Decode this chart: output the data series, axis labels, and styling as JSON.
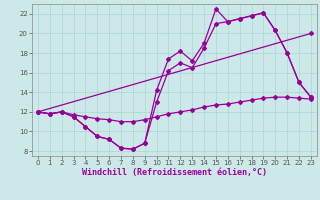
{
  "xlabel": "Windchill (Refroidissement éolien,°C)",
  "xlim": [
    -0.5,
    23.5
  ],
  "ylim": [
    7.5,
    23.0
  ],
  "xticks": [
    0,
    1,
    2,
    3,
    4,
    5,
    6,
    7,
    8,
    9,
    10,
    11,
    12,
    13,
    14,
    15,
    16,
    17,
    18,
    19,
    20,
    21,
    22,
    23
  ],
  "yticks": [
    8,
    10,
    12,
    14,
    16,
    18,
    20,
    22
  ],
  "background_color": "#cce8e8",
  "line_color": "#990099",
  "grid_color": "#aad4d4",
  "lines": [
    {
      "x": [
        0,
        1,
        2,
        3,
        4,
        5,
        6,
        7,
        8,
        9,
        10,
        11,
        12,
        13,
        14,
        15,
        16,
        17,
        18,
        19,
        20,
        21,
        22,
        23
      ],
      "y": [
        12,
        11.8,
        12,
        11.5,
        10.5,
        9.5,
        9.2,
        8.3,
        8.2,
        8.8,
        14.2,
        17.4,
        18.2,
        17.2,
        19.0,
        22.5,
        21.2,
        21.5,
        21.8,
        22.1,
        20.3,
        18.0,
        15.0,
        13.5
      ]
    },
    {
      "x": [
        0,
        1,
        2,
        3,
        4,
        5,
        6,
        7,
        8,
        9,
        10,
        11,
        12,
        13,
        14,
        15,
        16,
        17,
        18,
        19,
        20,
        21,
        22,
        23
      ],
      "y": [
        12,
        11.8,
        12,
        11.5,
        10.5,
        9.5,
        9.2,
        8.3,
        8.2,
        8.8,
        13.0,
        16.2,
        17.0,
        16.5,
        18.5,
        21.0,
        21.2,
        21.5,
        21.8,
        22.1,
        20.3,
        18.0,
        15.0,
        13.5
      ]
    },
    {
      "x": [
        0,
        23
      ],
      "y": [
        12,
        20.0
      ]
    },
    {
      "x": [
        0,
        1,
        2,
        3,
        4,
        5,
        6,
        7,
        8,
        9,
        10,
        11,
        12,
        13,
        14,
        15,
        16,
        17,
        18,
        19,
        20,
        21,
        22,
        23
      ],
      "y": [
        12,
        11.8,
        12.0,
        11.7,
        11.5,
        11.3,
        11.2,
        11.0,
        11.0,
        11.2,
        11.5,
        11.8,
        12.0,
        12.2,
        12.5,
        12.7,
        12.8,
        13.0,
        13.2,
        13.4,
        13.5,
        13.5,
        13.4,
        13.3
      ]
    }
  ],
  "marker": "D",
  "markersize": 2.0,
  "linewidth": 0.9,
  "tick_fontsize": 5.0,
  "xlabel_fontsize": 6.0
}
